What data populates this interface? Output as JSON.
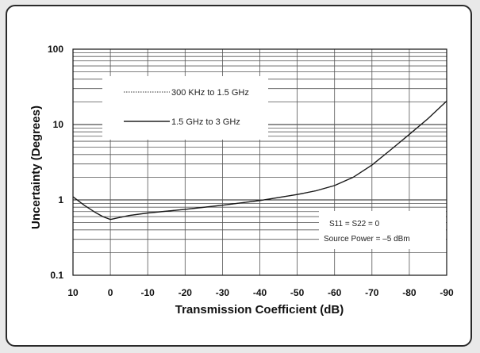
{
  "chart_data": {
    "type": "line",
    "title": "",
    "xlabel": "Transmission Coefficient (dB)",
    "ylabel": "Uncertainty (Degrees)",
    "xlim": [
      10,
      -90
    ],
    "ylim": [
      0.1,
      100
    ],
    "yscale": "log",
    "grid": true,
    "legend_position": "top-left",
    "x_ticks": [
      "10",
      "0",
      "-10",
      "-20",
      "-30",
      "-40",
      "-50",
      "-60",
      "-70",
      "-80",
      "-90"
    ],
    "y_ticks": [
      "0.1",
      "1",
      "10",
      "100"
    ],
    "series": [
      {
        "name": "300 KHz to 1.5 GHz",
        "style": "dotted",
        "x": [
          10,
          7,
          4,
          2,
          0,
          -5,
          -10,
          -20,
          -30,
          -40,
          -50,
          -55,
          -60,
          -65,
          -70,
          -75,
          -80,
          -85,
          -90
        ],
        "y": [
          1.1,
          0.85,
          0.68,
          0.6,
          0.55,
          0.62,
          0.67,
          0.75,
          0.85,
          0.98,
          1.18,
          1.32,
          1.55,
          2.0,
          2.9,
          4.6,
          7.4,
          12.0,
          20.5
        ]
      },
      {
        "name": "1.5 GHz to 3 GHz",
        "style": "solid",
        "x": [
          10,
          7,
          4,
          2,
          0,
          -5,
          -10,
          -20,
          -30,
          -40,
          -50,
          -55,
          -60,
          -65,
          -70,
          -75,
          -80,
          -85,
          -90
        ],
        "y": [
          1.1,
          0.85,
          0.68,
          0.6,
          0.55,
          0.62,
          0.67,
          0.75,
          0.85,
          0.98,
          1.18,
          1.32,
          1.55,
          2.0,
          2.9,
          4.6,
          7.4,
          12.0,
          20.5
        ]
      }
    ],
    "annotations": [
      "S11 = S22 = 0",
      "Source Power = –5 dBm"
    ]
  }
}
